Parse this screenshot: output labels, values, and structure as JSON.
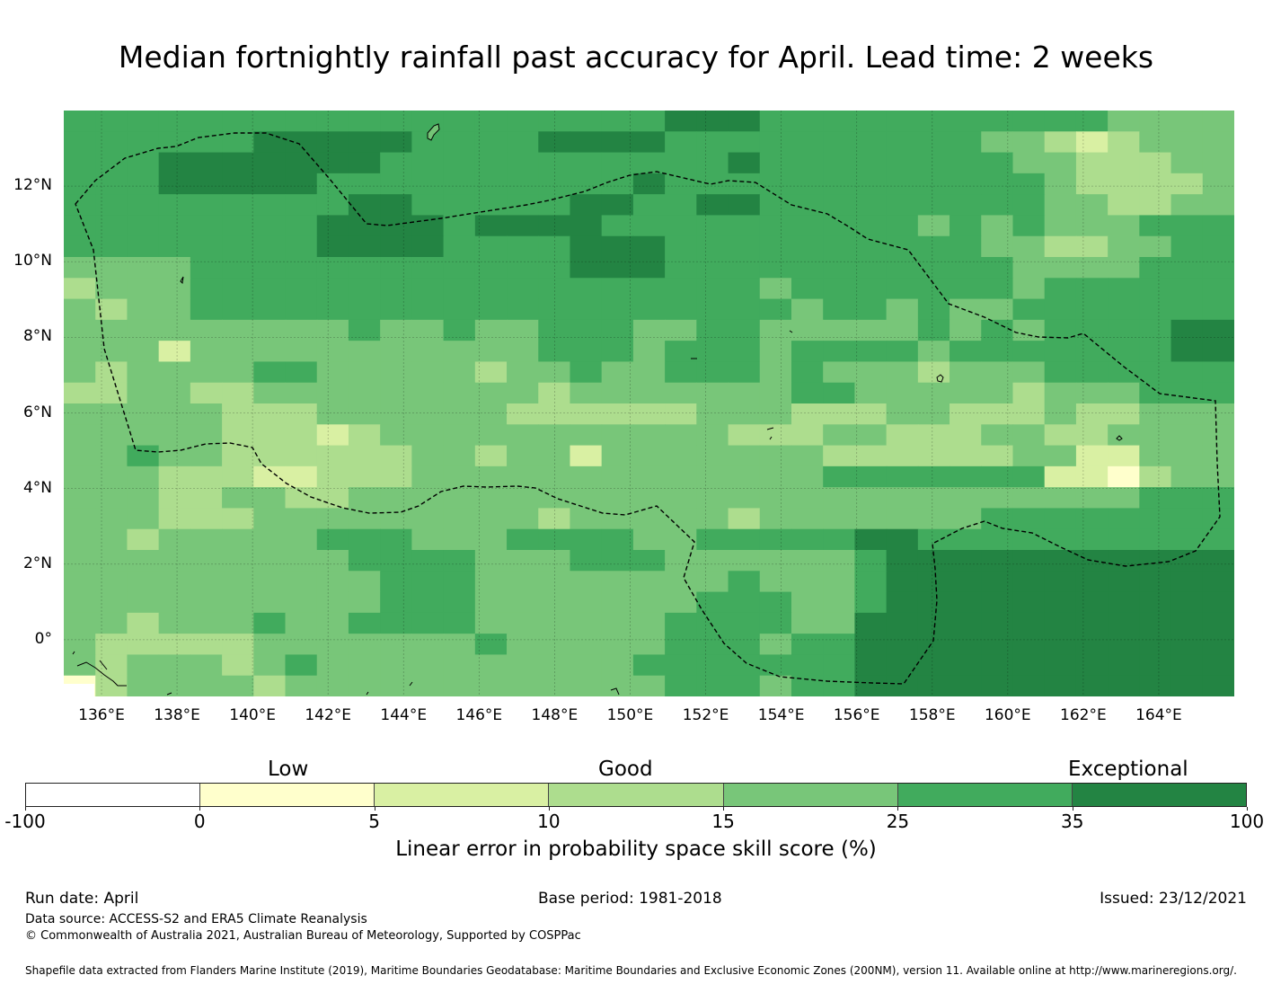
{
  "title": "Median fortnightly rainfall past accuracy for April. Lead time: 2 weeks",
  "map": {
    "lon_range": [
      135,
      166
    ],
    "lat_range": [
      -1.5,
      14
    ],
    "lon_ticks": [
      "136°E",
      "138°E",
      "140°E",
      "142°E",
      "144°E",
      "146°E",
      "148°E",
      "150°E",
      "152°E",
      "154°E",
      "156°E",
      "158°E",
      "160°E",
      "162°E",
      "164°E"
    ],
    "lat_ticks": [
      "12°N",
      "10°N",
      "8°N",
      "6°N",
      "4°N",
      "2°N",
      "0°"
    ],
    "grid_cols": 37,
    "grid_rows": 28,
    "grid": [
      "4444444444444444444555444444444443333",
      "4444445555544445555444444444433212333",
      "4445555555444444444445444444443322233",
      "4445555544444444445444444444444322223",
      "4444444445544444554455444444444332233",
      "4444444455554555544444444443434333444",
      "4444444455554444555444444444433223344",
      "3333444444444444555444444444443333444",
      "2333444444444444444444344444443444444",
      "3233444444444444444444434434334444444",
      "3333333334334334443344333334343444455",
      "3331333333333334443444344443444444455",
      "3233334433333233433444343332333444444",
      "2233223333333332333333344333332333444",
      "3333322233333322222233322233222322333",
      "3333322212333333333332223322233223333",
      "3343322222233233133333332222223311333",
      "3332221122233333333333334444444110233",
      "3332233223333333333333333333333333444",
      "3332223333333332333332333333344444444",
      "3323333344433344443344444554444444444",
      "3333333334444333444333333455555555555",
      "3333333333444333333334333455555555555",
      "3333333333444333333344433455555555555",
      "3323334334444333333444433555555555555",
      "3222223333333433333444344555555555555",
      "3233323433333333334444444555555555555",
      "0233332333333333333444344555555555555"
    ],
    "colors": [
      "#ffffff",
      "#ffffcc",
      "#d9f0a3",
      "#addd8e",
      "#78c679",
      "#41ab5d",
      "#238443"
    ]
  },
  "colorbar": {
    "ticks": [
      "-100",
      "0",
      "5",
      "10",
      "15",
      "25",
      "35",
      "100"
    ],
    "categories": [
      "Low",
      "Good",
      "Exceptional"
    ],
    "label": "Linear error in probability space skill score (%)"
  },
  "footer": {
    "run_date": "Run date: April",
    "base_period": "Base period: 1981-2018",
    "issued": "Issued: 23/12/2021",
    "data_source": "Data source: ACCESS-S2 and ERA5 Climate Reanalysis",
    "copyright": "© Commonwealth of Australia 2021, Australian Bureau of Meteorology, Supported by COSPPac",
    "shapefile": "Shapefile data extracted from Flanders Marine Institute (2019), Maritime Boundaries Geodatabase: Maritime Boundaries and Exclusive Economic Zones (200NM), version 11. Available online at http://www.marineregions.org/."
  }
}
